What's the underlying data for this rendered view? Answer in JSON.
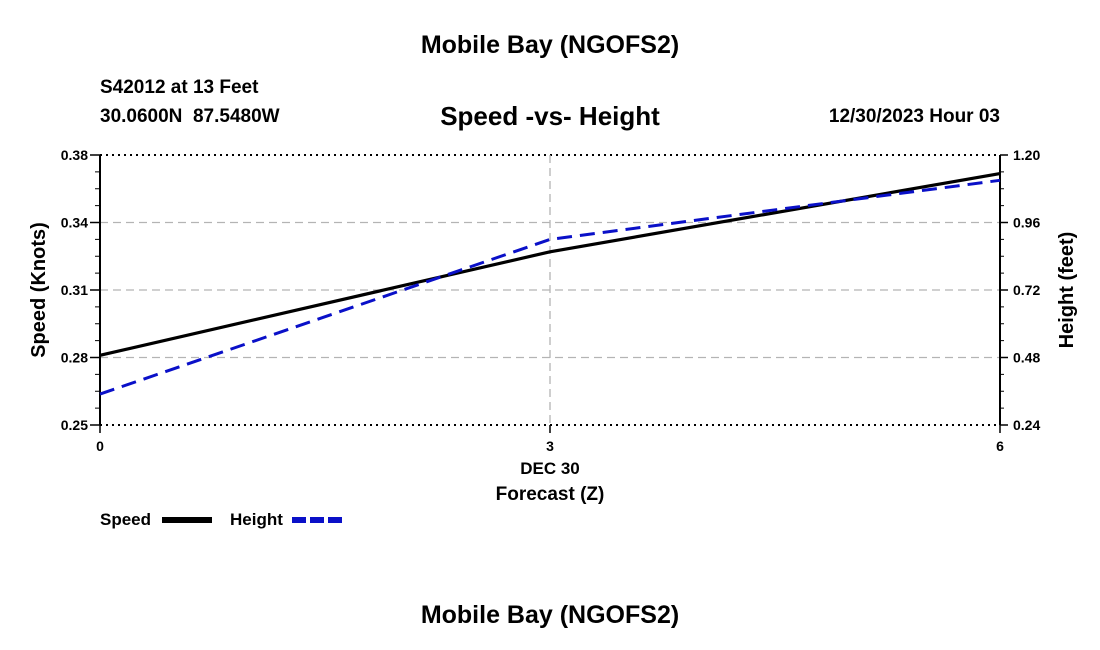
{
  "header": {
    "title": "Mobile Bay (NGOFS2)",
    "station": "S42012 at 13 Feet",
    "coords": "30.0600N  87.5480W",
    "subtitle": "Speed -vs- Height",
    "datetime": "12/30/2023 Hour 03"
  },
  "footer": {
    "title": "Mobile Bay (NGOFS2)"
  },
  "colors": {
    "speed": "#000000",
    "height": "#0a10c8",
    "grid": "#b4b4b4"
  },
  "chart_data": {
    "type": "line",
    "title": "Speed -vs- Height",
    "xlabel": "Forecast (Z)",
    "xlabel_date": "DEC 30",
    "ylabel": "Speed (Knots)",
    "y2label": "Height (feet)",
    "xlim": [
      0,
      6
    ],
    "ylim": [
      0.25,
      0.38
    ],
    "y2lim": [
      0.24,
      1.2
    ],
    "x_ticks": [
      0,
      3,
      6
    ],
    "x_tick_labels": [
      "0",
      "3",
      "6"
    ],
    "y_ticks": [
      0.25,
      0.28,
      0.31,
      0.34,
      0.38
    ],
    "y_tick_labels": [
      "0.25",
      "0.28",
      "0.31",
      "0.34",
      "0.38"
    ],
    "y2_ticks": [
      0.24,
      0.48,
      0.72,
      0.96,
      1.2
    ],
    "y2_tick_labels": [
      "0.24",
      "0.48",
      "0.72",
      "0.96",
      "1.20"
    ],
    "grid": true,
    "legend": [
      "Speed",
      "Height"
    ],
    "legend_position": "bottom-left",
    "series": [
      {
        "name": "Speed",
        "axis": "left",
        "style": "solid",
        "x": [
          0,
          3,
          6
        ],
        "values": [
          0.281,
          0.327,
          0.369
        ]
      },
      {
        "name": "Height",
        "axis": "right",
        "style": "dashed",
        "x": [
          0,
          3,
          6
        ],
        "values": [
          0.35,
          0.9,
          1.11
        ]
      }
    ]
  }
}
